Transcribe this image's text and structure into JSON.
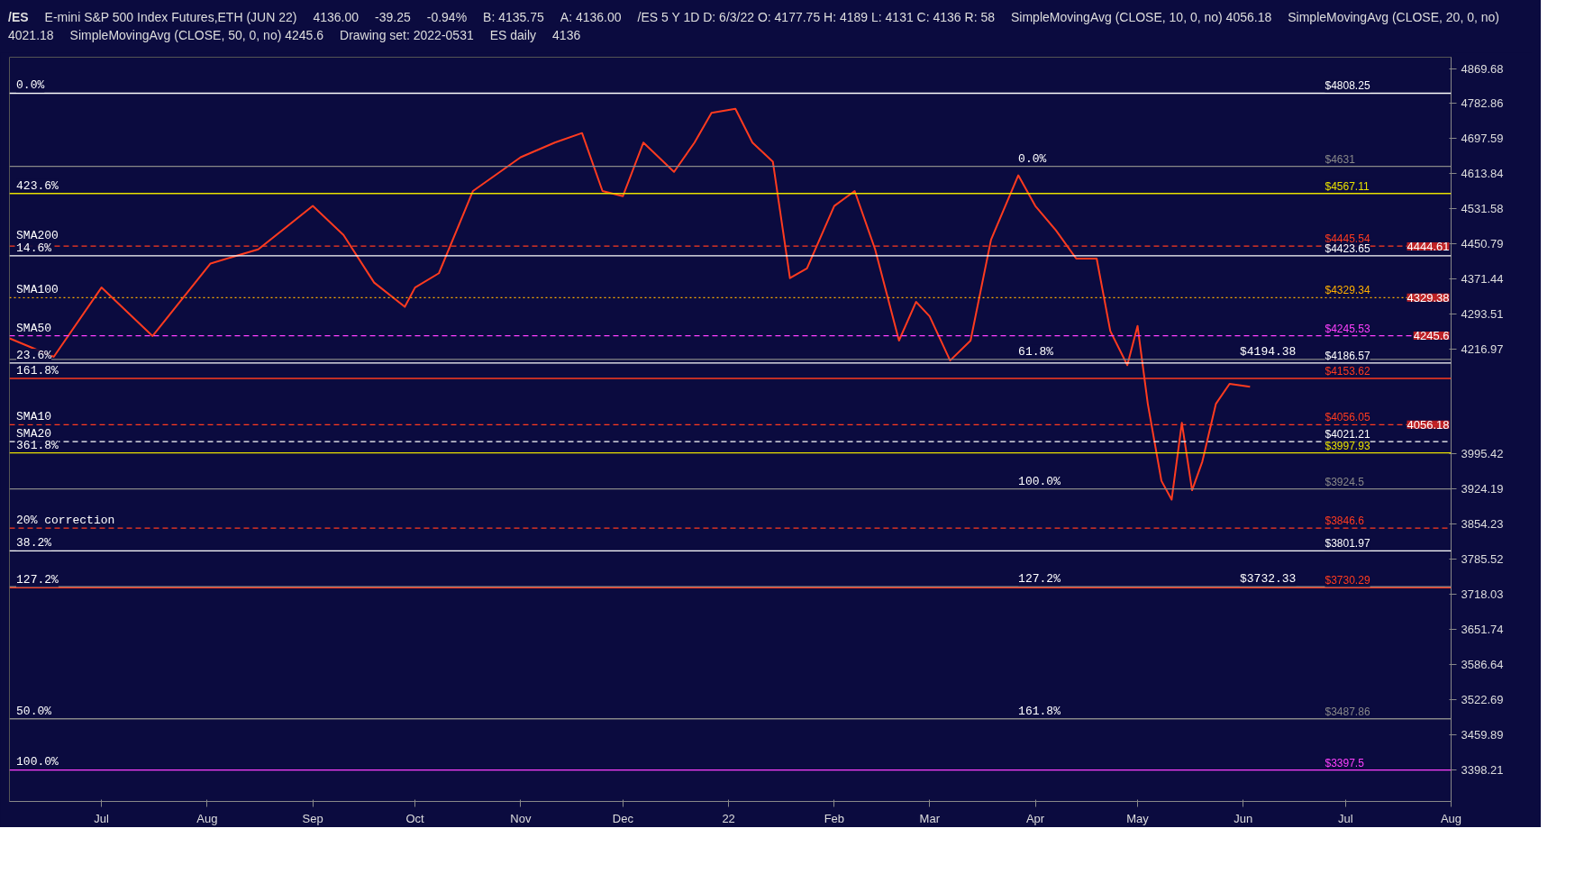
{
  "chart_data": {
    "type": "line",
    "title": "/ES",
    "subtitle": "E-mini S&P 500 Index Futures,ETH (JUN 22)",
    "annotations": [
      "4136.00",
      "-39.25",
      "-0.94%",
      "B: 4135.75",
      "A: 4136.00",
      "/ES 5 Y 1D D: 6/3/22 O: 4177.75 H: 4189 L: 4131 C: 4136 R: 58",
      "SimpleMovingAvg (CLOSE, 10, 0, no) 4056.18",
      "SimpleMovingAvg (CLOSE, 20, 0, no) 4021.18",
      "SimpleMovingAvg (CLOSE, 50, 0, no) 4245.6",
      "Drawing set: 2022-0531",
      "ES daily",
      {
        "text": "$4194.38",
        "x": "2022-05-31",
        "y": 4194.38
      },
      {
        "text": "$3732.33",
        "x": "2022-05-31",
        "y": 3732.33
      },
      {
        "text": "0.0%",
        "x": "2021-06-06",
        "y": 4808.25
      },
      {
        "text": "423.6%",
        "x": "2021-06-06",
        "y": 4567.11
      },
      {
        "text": "SMA200",
        "x": "2021-06-06",
        "y": 4452
      },
      {
        "text": "14.6%",
        "x": "2021-06-06",
        "y": 4423.65
      },
      {
        "text": "SMA100",
        "x": "2021-06-06",
        "y": 4329.34
      },
      {
        "text": "SMA50",
        "x": "2021-06-06",
        "y": 4245.53
      },
      {
        "text": "23.6%",
        "x": "2021-06-06",
        "y": 4186.57
      },
      {
        "text": "161.8%",
        "x": "2021-06-06",
        "y": 4153.62
      },
      {
        "text": "SMA10",
        "x": "2021-06-06",
        "y": 4056.05
      },
      {
        "text": "SMA20",
        "x": "2021-06-06",
        "y": 4021.21
      },
      {
        "text": "361.8%",
        "x": "2021-06-06",
        "y": 3997.93
      },
      {
        "text": "20% correction",
        "x": "2021-06-06",
        "y": 3846.6
      },
      {
        "text": "38.2%",
        "x": "2021-06-06",
        "y": 3801.97
      },
      {
        "text": "127.2%",
        "x": "2021-06-06",
        "y": 3730.29
      },
      {
        "text": "50.0%",
        "x": "2021-06-06",
        "y": 3487.86
      },
      {
        "text": "100.0%",
        "x": "2021-06-06",
        "y": 3398.21
      },
      {
        "text": "0.0%",
        "x": "2022-03-27",
        "y": 4631
      },
      {
        "text": "61.8%",
        "x": "2022-03-27",
        "y": 4194.38
      },
      {
        "text": "100.0%",
        "x": "2022-03-27",
        "y": 3924.5
      },
      {
        "text": "127.2%",
        "x": "2022-03-27",
        "y": 3732.33
      },
      {
        "text": "161.8%",
        "x": "2022-03-27",
        "y": 3487.86
      },
      {
        "text": "4444.61",
        "x": "2022-08-01",
        "y": 4444.61
      },
      {
        "text": "4329.38",
        "x": "2022-08-01",
        "y": 4329.38
      },
      {
        "text": "4245.6",
        "x": "2022-08-01",
        "y": 4245.6
      },
      "4136",
      {
        "text": "4056.18",
        "x": "2022-08-01",
        "y": 4056.18
      }
    ],
    "x": [
      "2021-06-04",
      "2021-06-17",
      "2021-07-01",
      "2021-07-16",
      "2021-08-02",
      "2021-08-16",
      "2021-09-01",
      "2021-09-10",
      "2021-09-19",
      "2021-09-28",
      "2021-10-01",
      "2021-10-08",
      "2021-10-18",
      "2021-11-01",
      "2021-11-11",
      "2021-11-19",
      "2021-11-25",
      "2021-12-01",
      "2021-12-07",
      "2021-12-16",
      "2021-12-22",
      "2021-12-27",
      "2022-01-03",
      "2022-01-08",
      "2022-01-14",
      "2022-01-19",
      "2022-01-24",
      "2022-02-01",
      "2022-02-07",
      "2022-02-13",
      "2022-02-20",
      "2022-02-25",
      "2022-03-01",
      "2022-03-07",
      "2022-03-13",
      "2022-03-19",
      "2022-03-27",
      "2022-04-01",
      "2022-04-07",
      "2022-04-13",
      "2022-04-19",
      "2022-04-23",
      "2022-04-28",
      "2022-05-01",
      "2022-05-04",
      "2022-05-08",
      "2022-05-11",
      "2022-05-14",
      "2022-05-17",
      "2022-05-20",
      "2022-05-24",
      "2022-05-28",
      "2022-06-03"
    ],
    "series": [
      {
        "color": "#ff3b1f",
        "values": [
          4240,
          4200,
          4352,
          4245,
          4406,
          4438,
          4538,
          4471,
          4363,
          4309,
          4352,
          4384,
          4573,
          4653,
          4688,
          4711,
          4573,
          4561,
          4688,
          4618,
          4688,
          4760,
          4770,
          4688,
          4642,
          4373,
          4395,
          4538,
          4573,
          4438,
          4235,
          4320,
          4288,
          4192,
          4235,
          4460,
          4610,
          4538,
          4482,
          4417,
          4417,
          4256,
          4182,
          4267,
          4100,
          3941,
          3903,
          4060,
          3922,
          3980,
          4100,
          4142,
          4136
        ]
      }
    ],
    "xlim": [
      "2021-06-04",
      "2022-08-01"
    ],
    "xticks": [
      {
        "value": "2021-07-01",
        "label": "Jul"
      },
      {
        "value": "2021-08-01",
        "label": "Aug"
      },
      {
        "value": "2021-09-01",
        "label": "Sep"
      },
      {
        "value": "2021-10-01",
        "label": "Oct"
      },
      {
        "value": "2021-11-01",
        "label": "Nov"
      },
      {
        "value": "2021-12-01",
        "label": "Dec"
      },
      {
        "value": "2022-01-01",
        "label": "22"
      },
      {
        "value": "2022-02-01",
        "label": "Feb"
      },
      {
        "value": "2022-03-01",
        "label": "Mar"
      },
      {
        "value": "2022-04-01",
        "label": "Apr"
      },
      {
        "value": "2022-05-01",
        "label": "May"
      },
      {
        "value": "2022-06-01",
        "label": "Jun"
      },
      {
        "value": "2022-07-01",
        "label": "Jul"
      },
      {
        "value": "2022-08-01",
        "label": "Aug"
      }
    ],
    "log": "y",
    "ylim": [
      3343,
      4898
    ],
    "yticks": [
      4869.68,
      4782.86,
      4697.59,
      4613.84,
      4531.58,
      4450.79,
      4371.44,
      4293.51,
      4216.97,
      3995.42,
      3924.19,
      3854.23,
      3785.52,
      3718.03,
      3651.74,
      3586.64,
      3522.69,
      3459.89,
      3398.21
    ],
    "grid": false,
    "marker": "none",
    "line_style": "solid",
    "ref_lines": [
      {
        "axis": "y",
        "value": 4808.25,
        "label": "$4808.25",
        "color": "#ffffff"
      },
      {
        "axis": "y",
        "value": 4631,
        "label": "$4631",
        "color": "#888888"
      },
      {
        "axis": "y",
        "value": 4567.11,
        "label": "$4567.11",
        "color": "#e8e000"
      },
      {
        "axis": "y",
        "value": 4445.54,
        "label": "$4445.54",
        "color": "#ff3b1f",
        "line_style": "dashed"
      },
      {
        "axis": "y",
        "value": 4423.65,
        "label": "$4423.65",
        "color": "#ffffff"
      },
      {
        "axis": "y",
        "value": 4329.34,
        "label": "$4329.34",
        "color": "#ffb000",
        "line_style": "dotted"
      },
      {
        "axis": "y",
        "value": 4245.53,
        "label": "$4245.53",
        "color": "#ff40ff",
        "line_style": "dashed"
      },
      {
        "axis": "y",
        "value": 4194.38,
        "color": "#888888"
      },
      {
        "axis": "y",
        "value": 4186.57,
        "label": "$4186.57",
        "color": "#ffffff"
      },
      {
        "axis": "y",
        "value": 4153.62,
        "label": "$4153.62",
        "color": "#ff3b1f"
      },
      {
        "axis": "y",
        "value": 4056.05,
        "label": "$4056.05",
        "color": "#ff3b1f",
        "line_style": "dashed"
      },
      {
        "axis": "y",
        "value": 4021.21,
        "label": "$4021.21",
        "color": "#ffffff",
        "line_style": "dashed"
      },
      {
        "axis": "y",
        "value": 3997.93,
        "label": "$3997.93",
        "color": "#e8e000"
      },
      {
        "axis": "y",
        "value": 3924.5,
        "label": "$3924.5",
        "color": "#888888"
      },
      {
        "axis": "y",
        "value": 3846.6,
        "label": "$3846.6",
        "color": "#ff3b1f",
        "line_style": "dashed"
      },
      {
        "axis": "y",
        "value": 3801.97,
        "label": "$3801.97",
        "color": "#ffffff"
      },
      {
        "axis": "y",
        "value": 3732.33,
        "color": "#888888"
      },
      {
        "axis": "y",
        "value": 3730.29,
        "label": "$3730.29",
        "color": "#ff3b1f"
      },
      {
        "axis": "y",
        "value": 3487.86,
        "label": "$3487.86",
        "color": "#888888"
      },
      {
        "axis": "y",
        "value": 3397.5,
        "label": "$3397.5",
        "color": "#ff40ff"
      }
    ]
  }
}
